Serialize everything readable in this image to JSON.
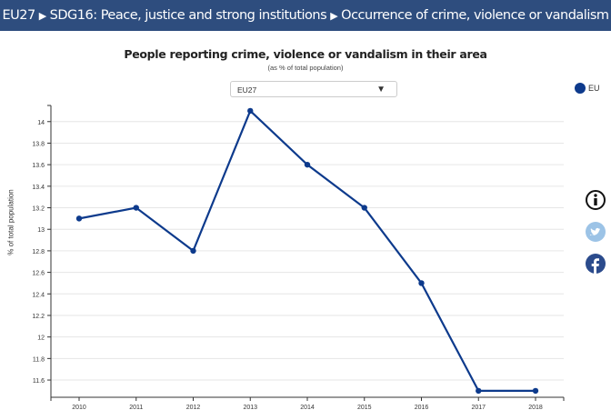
{
  "header": {
    "crumbs": [
      "EU27",
      "SDG16: Peace, justice and strong institutions",
      "Occurrence of crime, violence or vandalism"
    ]
  },
  "selector": {
    "value": "EU27"
  },
  "legend": {
    "label": "EU",
    "color": "#0d3a8c"
  },
  "icons": [
    "info-icon",
    "twitter-icon",
    "facebook-icon"
  ],
  "chart_data": {
    "type": "line",
    "title": "People reporting crime, violence or vandalism in their area",
    "subtitle": "(as % of total population)",
    "xlabel": "",
    "ylabel": "% of total population",
    "x": [
      "2010",
      "2011",
      "2012",
      "2013",
      "2014",
      "2015",
      "2016",
      "2017",
      "2018"
    ],
    "series": [
      {
        "name": "EU",
        "values": [
          13.1,
          13.2,
          12.8,
          14.1,
          13.6,
          13.2,
          12.5,
          11.5,
          11.5
        ]
      }
    ],
    "yticks": [
      "11.6",
      "11.8",
      "12",
      "12.2",
      "12.4",
      "12.6",
      "12.8",
      "13",
      "13.2",
      "13.4",
      "13.6",
      "13.8",
      "14"
    ],
    "ylim": [
      11.44,
      14.15
    ],
    "grid": true,
    "legend_position": "top-right"
  }
}
